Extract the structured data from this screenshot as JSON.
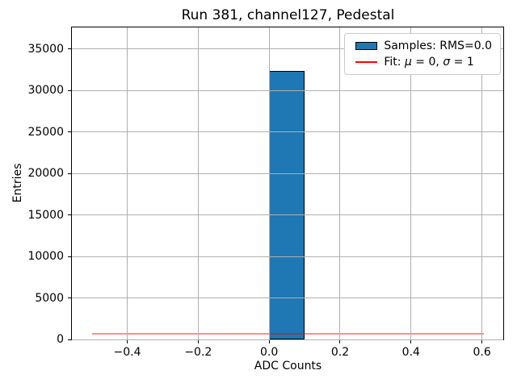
{
  "chart_data": {
    "type": "bar",
    "title": "Run 381, channel127, Pedestal",
    "xlabel": "ADC Counts",
    "ylabel": "Entries",
    "xlim": [
      -0.556,
      0.66
    ],
    "ylim": [
      0,
      37580
    ],
    "grid": true,
    "xticks": [
      {
        "value": -0.4,
        "label": "−0.4"
      },
      {
        "value": -0.2,
        "label": "−0.2"
      },
      {
        "value": 0.0,
        "label": "0.0"
      },
      {
        "value": 0.2,
        "label": "0.2"
      },
      {
        "value": 0.4,
        "label": "0.4"
      },
      {
        "value": 0.6,
        "label": "0.6"
      }
    ],
    "yticks": [
      {
        "value": 0,
        "label": "0"
      },
      {
        "value": 5000,
        "label": "5000"
      },
      {
        "value": 10000,
        "label": "10000"
      },
      {
        "value": 15000,
        "label": "15000"
      },
      {
        "value": 20000,
        "label": "20000"
      },
      {
        "value": 25000,
        "label": "25000"
      },
      {
        "value": 30000,
        "label": "30000"
      },
      {
        "value": 35000,
        "label": "35000"
      }
    ],
    "bins": [
      {
        "x0": 0.0,
        "x1": 0.1,
        "count": 32300
      }
    ],
    "fit_curve": {
      "mu": 0,
      "sigma": 1,
      "x_range": [
        -0.5,
        0.605
      ],
      "peak_entries": 600,
      "color": "#ff0000"
    },
    "legend": {
      "position": "upper right",
      "entries": [
        {
          "handle": "patch",
          "label": "Samples: RMS=0.0",
          "color": "#1f77b4"
        },
        {
          "handle": "line",
          "label": "Fit: μ = 0, σ = 1",
          "color": "#ff0000"
        }
      ]
    },
    "colors": {
      "bar_fill": "#1f77b4",
      "bar_edge": "#000000",
      "grid": "#b0b0b0",
      "fit_line": "#ff0000",
      "legend_border": "#cccccc",
      "background": "#ffffff",
      "text": "#000000"
    }
  },
  "legend_display": {
    "samples_label": "Samples: RMS=0.0",
    "fit_prefix": "Fit: ",
    "fit_mu": "μ",
    "fit_eq1": " = 0, ",
    "fit_sigma": "σ",
    "fit_eq2": " = 1"
  }
}
